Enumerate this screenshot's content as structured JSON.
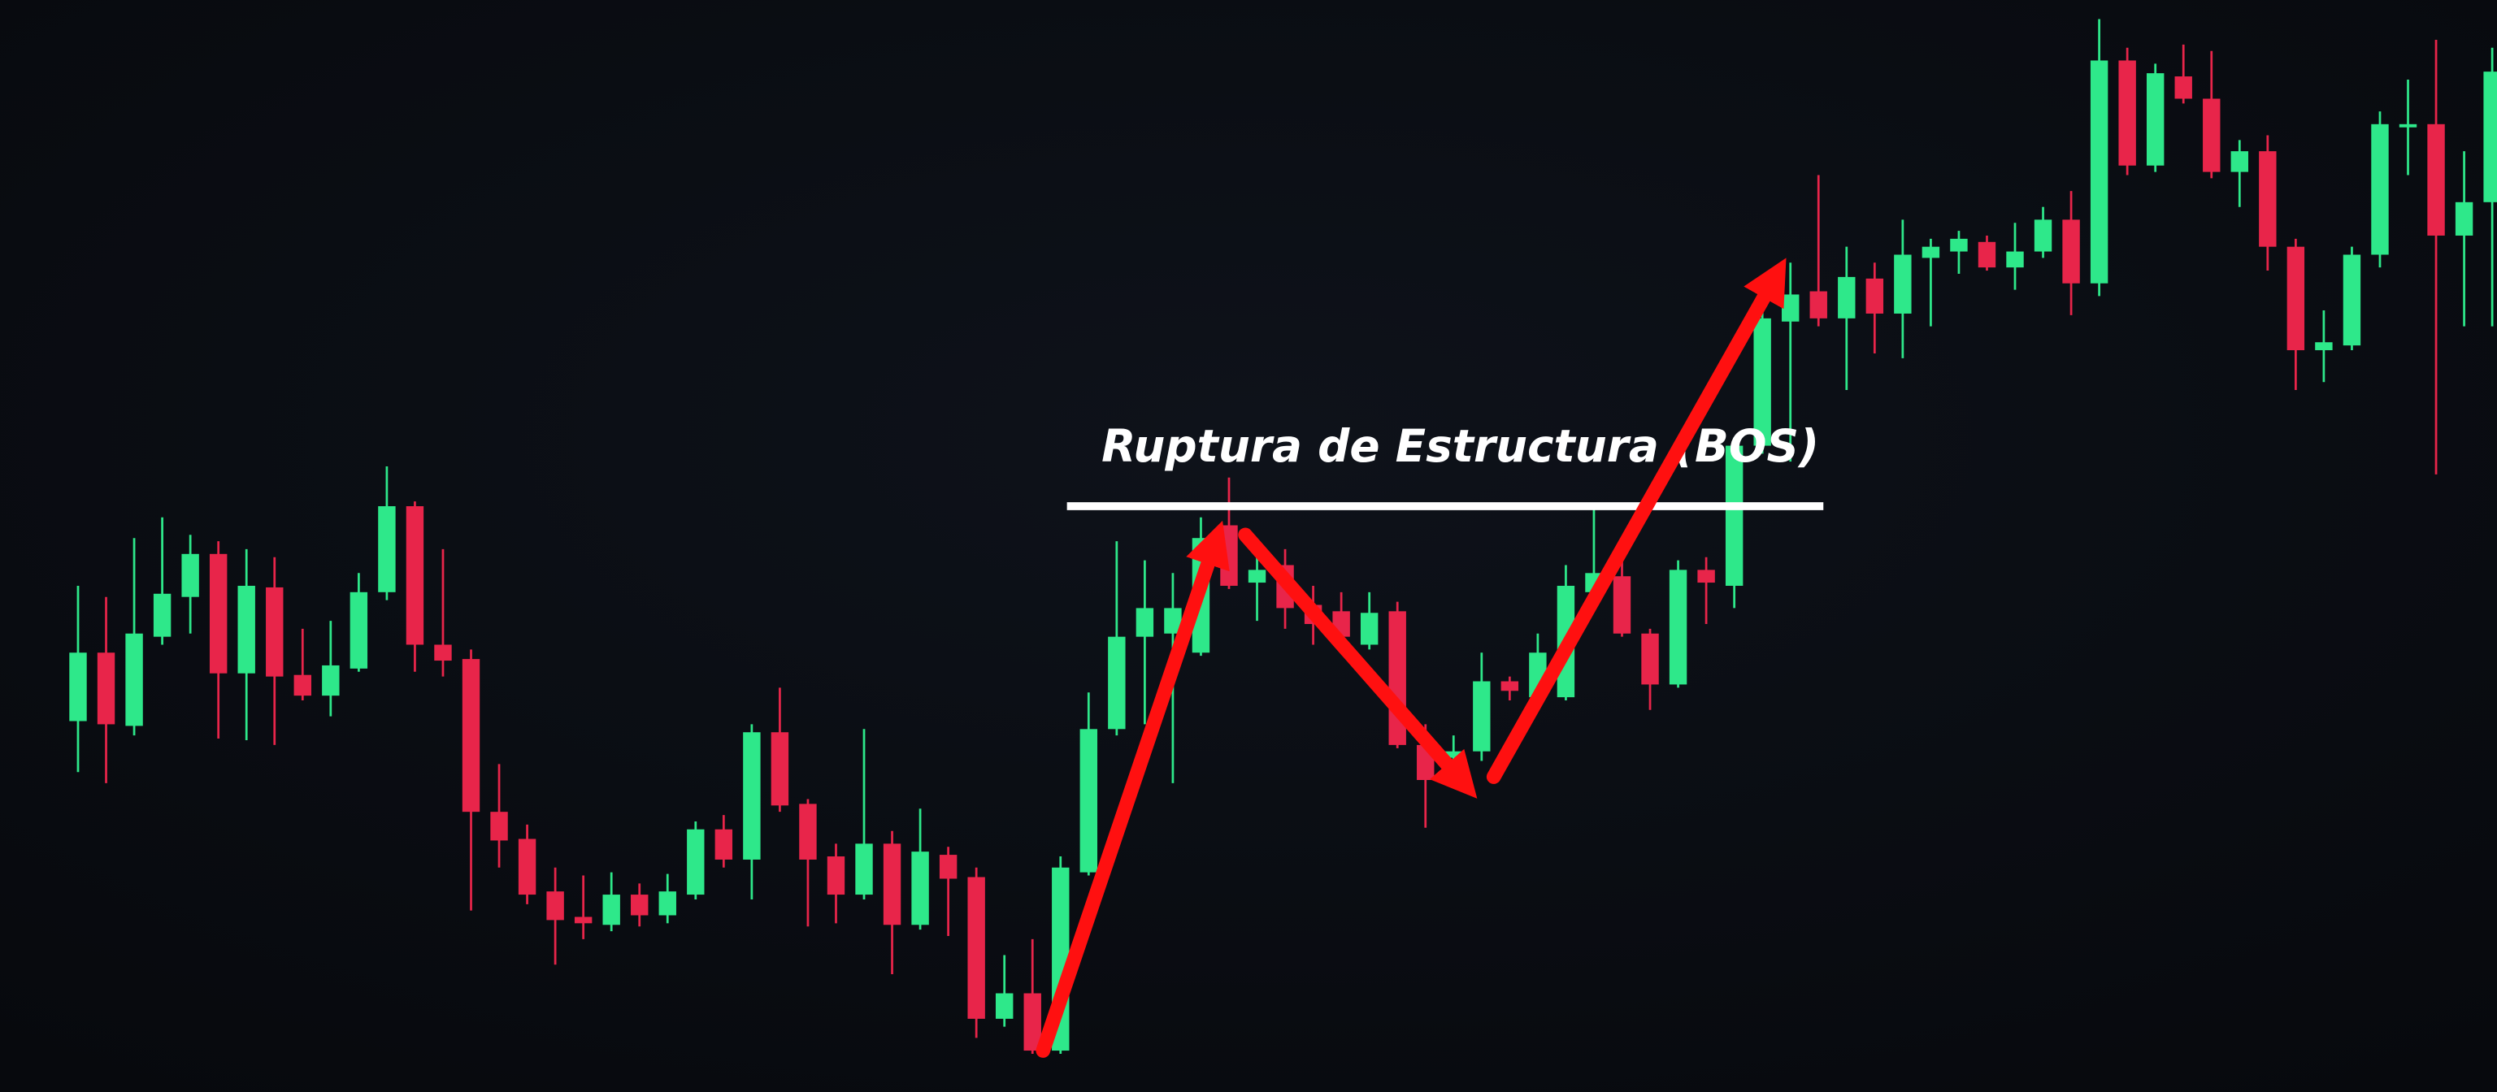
{
  "chart_data": {
    "type": "candlestick",
    "up_color": "#2ee88a",
    "down_color": "#e8254a",
    "ylim": [
      0,
      686
    ],
    "lines": [
      {
        "label": "Ruptura de Estructura (BOS)",
        "value": 368,
        "color": "#ffffff"
      }
    ],
    "open": [
      233,
      276,
      230,
      286,
      311,
      338,
      263,
      317,
      262,
      249,
      266,
      314,
      368,
      281,
      272,
      176,
      159,
      126,
      110,
      105,
      124,
      111,
      124,
      165,
      146,
      226,
      181,
      148,
      124,
      156,
      105,
      149,
      135,
      46,
      62,
      26,
      138,
      228,
      286,
      288,
      276,
      356,
      320,
      331,
      306,
      302,
      281,
      302,
      218,
      210,
      214,
      258,
      248,
      248,
      314,
      324,
      288,
      256,
      328,
      318,
      406,
      484,
      503,
      486,
      511,
      489,
      524,
      528,
      534,
      518,
      528,
      548,
      508,
      648,
      582,
      638,
      624,
      578,
      591,
      531,
      466,
      469,
      526,
      606,
      608,
      538,
      559
    ],
    "high": [
      318,
      311,
      348,
      361,
      350,
      346,
      341,
      336,
      291,
      296,
      326,
      393,
      371,
      341,
      278,
      206,
      168,
      141,
      136,
      138,
      131,
      137,
      170,
      174,
      231,
      254,
      184,
      156,
      228,
      164,
      178,
      154,
      141,
      86,
      96,
      148,
      251,
      346,
      334,
      326,
      361,
      386,
      346,
      341,
      318,
      314,
      314,
      308,
      231,
      224,
      276,
      261,
      288,
      331,
      366,
      336,
      291,
      334,
      336,
      411,
      501,
      521,
      576,
      531,
      521,
      548,
      536,
      541,
      538,
      546,
      556,
      566,
      674,
      656,
      646,
      658,
      654,
      598,
      601,
      536,
      491,
      531,
      616,
      636,
      661,
      591,
      656
    ],
    "low": [
      201,
      194,
      224,
      281,
      288,
      222,
      221,
      218,
      246,
      236,
      264,
      309,
      264,
      261,
      114,
      141,
      118,
      80,
      96,
      101,
      104,
      106,
      121,
      141,
      121,
      176,
      104,
      106,
      121,
      74,
      102,
      98,
      34,
      41,
      24,
      24,
      136,
      224,
      231,
      194,
      274,
      316,
      296,
      291,
      281,
      276,
      278,
      216,
      166,
      206,
      208,
      246,
      246,
      246,
      311,
      286,
      240,
      254,
      294,
      304,
      401,
      396,
      481,
      441,
      464,
      461,
      481,
      514,
      516,
      504,
      524,
      488,
      500,
      576,
      578,
      621,
      574,
      556,
      516,
      441,
      446,
      466,
      518,
      576,
      388,
      481,
      481
    ],
    "close": [
      276,
      231,
      288,
      313,
      338,
      263,
      318,
      261,
      249,
      268,
      314,
      368,
      281,
      271,
      176,
      158,
      124,
      108,
      106,
      124,
      111,
      126,
      165,
      146,
      226,
      180,
      146,
      124,
      156,
      105,
      151,
      134,
      46,
      62,
      26,
      141,
      228,
      286,
      304,
      304,
      348,
      318,
      328,
      304,
      294,
      286,
      301,
      218,
      196,
      214,
      258,
      252,
      276,
      318,
      326,
      288,
      256,
      328,
      320,
      406,
      486,
      501,
      486,
      512,
      489,
      526,
      531,
      536,
      518,
      528,
      548,
      508,
      648,
      582,
      640,
      624,
      578,
      591,
      531,
      466,
      471,
      526,
      608,
      608,
      538,
      559,
      641
    ]
  }
}
